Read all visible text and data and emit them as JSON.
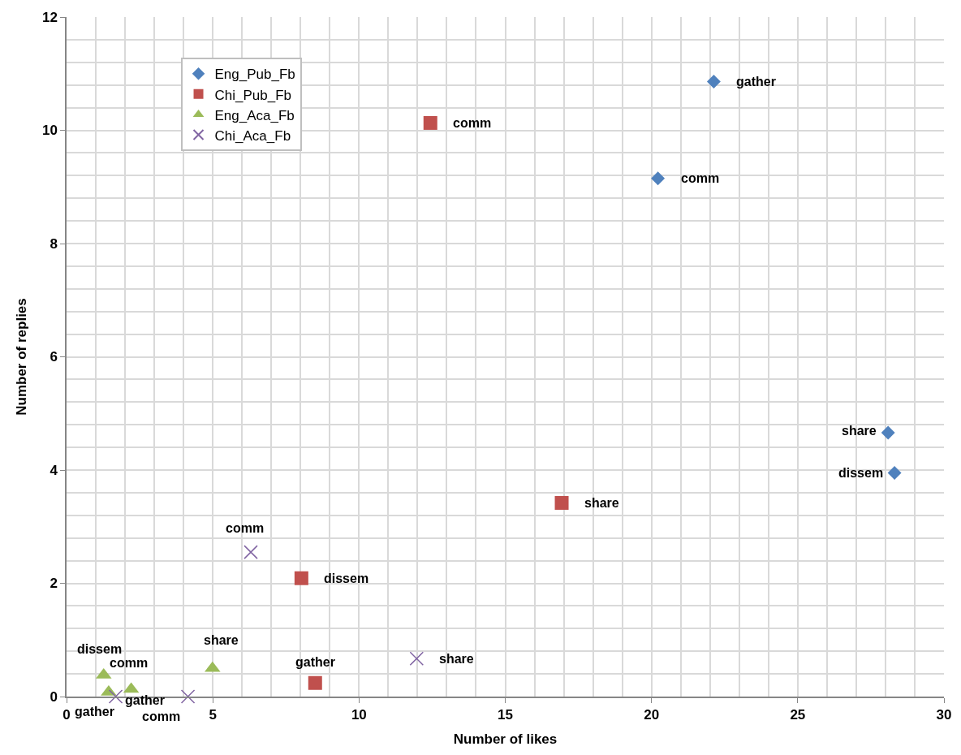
{
  "chart_data": {
    "type": "scatter",
    "xlabel": "Number of likes",
    "ylabel": "Number of replies",
    "xlim": [
      0,
      30
    ],
    "xticks": [
      0,
      5,
      10,
      15,
      20,
      25,
      30
    ],
    "ylim": [
      0,
      12
    ],
    "yticks": [
      0,
      2,
      4,
      6,
      8,
      10,
      12
    ],
    "grid": true,
    "legend": "top left",
    "series": [
      {
        "name": "Eng_Pub_Fb",
        "color": "#4f81bd",
        "marker": "diamond",
        "x": [
          22.13,
          20.22,
          28.09,
          28.31
        ],
        "values": [
          10.86,
          9.15,
          4.66,
          3.95
        ]
      },
      {
        "name": "Chi_Pub_Fb",
        "color": "#c0504d",
        "marker": "square",
        "x": [
          12.44,
          16.93,
          8.03,
          8.5
        ],
        "values": [
          10.13,
          3.42,
          2.09,
          0.24
        ]
      },
      {
        "name": "Eng_Aca_Fb",
        "color": "#9bbb59",
        "marker": "triangle",
        "x": [
          1.27,
          1.44,
          2.21,
          4.99
        ],
        "values": [
          0.38,
          0.08,
          0.13,
          0.5
        ]
      },
      {
        "name": "Chi_Aca_Fb",
        "color": "#8064a2",
        "marker": "cross",
        "x": [
          1.68,
          4.15,
          6.3,
          11.97
        ],
        "values": [
          0,
          0,
          2.55,
          0.67
        ]
      }
    ],
    "annotations": [
      {
        "text": "gather",
        "x": 22.13,
        "y": 10.86
      },
      {
        "text": "comm",
        "x": 20.22,
        "y": 9.15
      },
      {
        "text": "share",
        "x": 28.09,
        "y": 4.66
      },
      {
        "text": "dissem",
        "x": 28.31,
        "y": 3.95
      },
      {
        "text": "comm",
        "x": 12.44,
        "y": 10.13
      },
      {
        "text": "share",
        "x": 16.93,
        "y": 3.42
      },
      {
        "text": "dissem",
        "x": 8.03,
        "y": 2.09
      },
      {
        "text": "gather",
        "x": 8.5,
        "y": 0.24
      },
      {
        "text": "dissem",
        "x": 1.27,
        "y": 0.38
      },
      {
        "text": "gather",
        "x": 1.44,
        "y": 0.08
      },
      {
        "text": "comm",
        "x": 2.21,
        "y": 0.13
      },
      {
        "text": "share",
        "x": 4.99,
        "y": 0.5
      },
      {
        "text": "gather",
        "x": 1.68,
        "y": 0
      },
      {
        "text": "comm",
        "x": 4.15,
        "y": 0
      },
      {
        "text": "comm",
        "x": 6.3,
        "y": 2.55
      },
      {
        "text": "share",
        "x": 11.97,
        "y": 0.67
      }
    ]
  }
}
